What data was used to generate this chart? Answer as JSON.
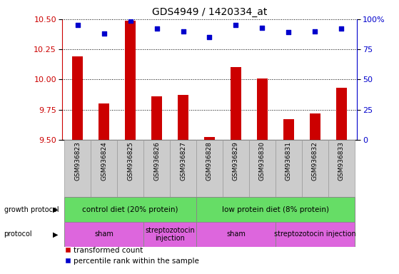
{
  "title": "GDS4949 / 1420334_at",
  "samples": [
    "GSM936823",
    "GSM936824",
    "GSM936825",
    "GSM936826",
    "GSM936827",
    "GSM936828",
    "GSM936829",
    "GSM936830",
    "GSM936831",
    "GSM936832",
    "GSM936833"
  ],
  "red_values": [
    10.19,
    9.8,
    10.49,
    9.86,
    9.87,
    9.52,
    10.1,
    10.01,
    9.67,
    9.72,
    9.93
  ],
  "blue_values": [
    95,
    88,
    99,
    92,
    90,
    85,
    95,
    93,
    89,
    90,
    92
  ],
  "ylim_left": [
    9.5,
    10.5
  ],
  "ylim_right": [
    0,
    100
  ],
  "yticks_left": [
    9.5,
    9.75,
    10.0,
    10.25,
    10.5
  ],
  "yticks_right": [
    0,
    25,
    50,
    75,
    100
  ],
  "ytick_labels_right": [
    "0",
    "25",
    "50",
    "75",
    "100%"
  ],
  "bar_color": "#cc0000",
  "dot_color": "#0000cc",
  "bar_width": 0.4,
  "growth_protocol_groups": [
    {
      "label": "control diet (20% protein)",
      "start": 0,
      "end": 4,
      "color": "#66dd66"
    },
    {
      "label": "low protein diet (8% protein)",
      "start": 5,
      "end": 10,
      "color": "#66dd66"
    }
  ],
  "protocol_groups": [
    {
      "label": "sham",
      "start": 0,
      "end": 2,
      "color": "#dd66dd"
    },
    {
      "label": "streptozotocin\ninjection",
      "start": 3,
      "end": 4,
      "color": "#dd66dd"
    },
    {
      "label": "sham",
      "start": 5,
      "end": 7,
      "color": "#dd66dd"
    },
    {
      "label": "streptozotocin injection",
      "start": 8,
      "end": 10,
      "color": "#dd66dd"
    }
  ],
  "legend_red": "transformed count",
  "legend_blue": "percentile rank within the sample",
  "label_growth": "growth protocol",
  "label_protocol": "protocol"
}
